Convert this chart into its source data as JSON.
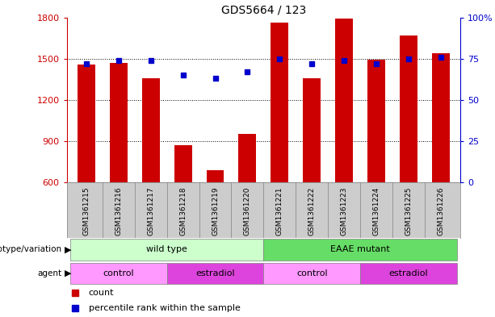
{
  "title": "GDS5664 / 123",
  "samples": [
    "GSM1361215",
    "GSM1361216",
    "GSM1361217",
    "GSM1361218",
    "GSM1361219",
    "GSM1361220",
    "GSM1361221",
    "GSM1361222",
    "GSM1361223",
    "GSM1361224",
    "GSM1361225",
    "GSM1361226"
  ],
  "counts": [
    1460,
    1470,
    1360,
    870,
    690,
    950,
    1760,
    1360,
    1790,
    1490,
    1670,
    1540
  ],
  "percentile_ranks": [
    72,
    74,
    74,
    65,
    63,
    67,
    75,
    72,
    74,
    72,
    75,
    76
  ],
  "ylim_left": [
    600,
    1800
  ],
  "ylim_right": [
    0,
    100
  ],
  "yticks_left": [
    600,
    900,
    1200,
    1500,
    1800
  ],
  "yticks_right": [
    0,
    25,
    50,
    75,
    100
  ],
  "bar_color": "#cc0000",
  "dot_color": "#0000cc",
  "bg_color": "#ffffff",
  "xtick_bg": "#cccccc",
  "genotype_groups": [
    {
      "label": "wild type",
      "start": 0,
      "end": 6,
      "color": "#ccffcc"
    },
    {
      "label": "EAAE mutant",
      "start": 6,
      "end": 12,
      "color": "#66dd66"
    }
  ],
  "agent_groups": [
    {
      "label": "control",
      "start": 0,
      "end": 3,
      "color": "#ff99ff"
    },
    {
      "label": "estradiol",
      "start": 3,
      "end": 6,
      "color": "#dd44dd"
    },
    {
      "label": "control",
      "start": 6,
      "end": 9,
      "color": "#ff99ff"
    },
    {
      "label": "estradiol",
      "start": 9,
      "end": 12,
      "color": "#dd44dd"
    }
  ],
  "legend_count_color": "#cc0000",
  "legend_dot_color": "#0000cc",
  "tick_label_color_left": "#cc0000",
  "tick_label_color_right": "#0000cc",
  "bar_width": 0.55
}
